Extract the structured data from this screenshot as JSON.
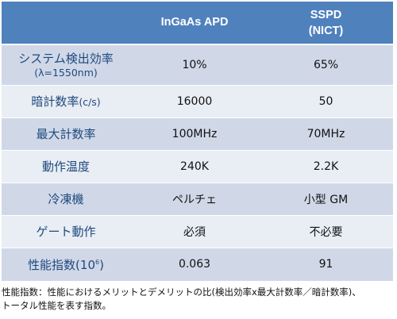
{
  "table": {
    "headers": [
      "",
      "InGaAs APD",
      "SSPD",
      "(NICT)"
    ],
    "rows": [
      {
        "label": "システム検出効率",
        "label_sub": "(λ=1550nm)",
        "apd": "10%",
        "sspd": "65%"
      },
      {
        "label": "暗計数率",
        "label_unit": "(c/s)",
        "apd": "16000",
        "sspd": "50"
      },
      {
        "label": "最大計数率",
        "apd": "100MHz",
        "sspd": "70MHz"
      },
      {
        "label": "動作温度",
        "apd": "240K",
        "sspd": "2.2K"
      },
      {
        "label": "冷凍機",
        "apd": "ペルチェ",
        "sspd": "小型 GM"
      },
      {
        "label": "ゲート動作",
        "apd": "必須",
        "sspd": "不必要"
      },
      {
        "label": "性能指数(10",
        "label_exp": "6",
        "label_close": ")",
        "apd": "0.063",
        "sspd": "91"
      }
    ],
    "colors": {
      "header_bg": "#4f81bd",
      "row_odd": "#d0d8e8",
      "row_even": "#e9edf4",
      "label_text": "#1f497d"
    }
  },
  "footnote": {
    "line1": "性能指数：性能におけるメリットとデメリットの比(検出効率x最大計数率／暗計数率)、",
    "line2": "トータル性能を表す指数。"
  }
}
